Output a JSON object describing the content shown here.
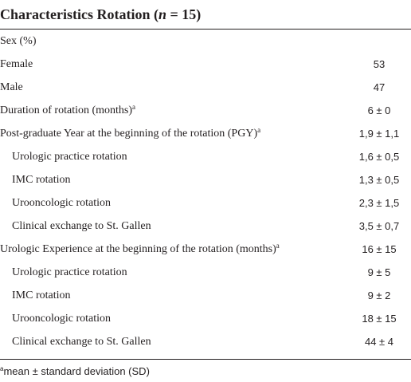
{
  "table": {
    "title_prefix": "Characteristics Rotation (",
    "title_n": "n",
    "title_suffix": " = 15)",
    "rows": [
      {
        "label": "Sex (%)",
        "sup": "",
        "value": "",
        "indent": false
      },
      {
        "label": "Female",
        "sup": "",
        "value": "53",
        "indent": false
      },
      {
        "label": "Male",
        "sup": "",
        "value": "47",
        "indent": false
      },
      {
        "label": "Duration of rotation (months)",
        "sup": "a",
        "value": "6 ± 0",
        "indent": false
      },
      {
        "label": "Post-graduate Year at the beginning of the rotation (PGY)",
        "sup": "a",
        "value": "1,9 ± 1,1",
        "indent": false
      },
      {
        "label": "Urologic practice rotation",
        "sup": "",
        "value": "1,6 ± 0,5",
        "indent": true
      },
      {
        "label": "IMC rotation",
        "sup": "",
        "value": "1,3 ± 0,5",
        "indent": true
      },
      {
        "label": "Urooncologic rotation",
        "sup": "",
        "value": "2,3 ± 1,5",
        "indent": true
      },
      {
        "label": "Clinical exchange to St. Gallen",
        "sup": "",
        "value": "3,5 ± 0,7",
        "indent": true
      },
      {
        "label": "Urologic Experience at the beginning of the rotation (months)",
        "sup": "a",
        "value": "16 ± 15",
        "indent": false
      },
      {
        "label": "Urologic practice rotation",
        "sup": "",
        "value": "9 ± 5",
        "indent": true
      },
      {
        "label": "IMC rotation",
        "sup": "",
        "value": "9 ± 2",
        "indent": true
      },
      {
        "label": "Urooncologic rotation",
        "sup": "",
        "value": "18 ± 15",
        "indent": true
      },
      {
        "label": "Clinical exchange to St. Gallen",
        "sup": "",
        "value": "44 ± 4",
        "indent": true
      }
    ],
    "footnote": {
      "marker": "a",
      "text": "mean ± standard deviation (SD)"
    }
  }
}
